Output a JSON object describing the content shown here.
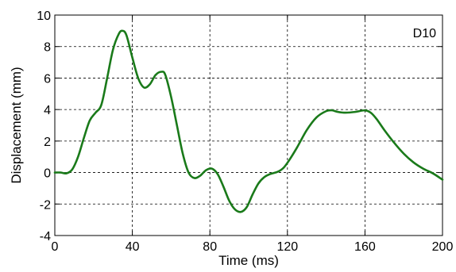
{
  "chart_data": {
    "type": "line",
    "xlabel": "Time (ms)",
    "ylabel": "Displacement (mm)",
    "xlim": [
      0,
      200
    ],
    "ylim": [
      -4,
      10
    ],
    "xticks": [
      0,
      40,
      80,
      120,
      160,
      200
    ],
    "yticks": [
      -4,
      -2,
      0,
      2,
      4,
      6,
      8,
      10
    ],
    "grid": true,
    "annotation": "D10",
    "series": [
      {
        "color": "#1a7a1a",
        "x": [
          0,
          3,
          6,
          9,
          12,
          15,
          18,
          21,
          24,
          27,
          30,
          33,
          35,
          37,
          40,
          43,
          46,
          49,
          52,
          55,
          57,
          60,
          63,
          66,
          69,
          72,
          75,
          78,
          81,
          84,
          87,
          90,
          93,
          96,
          99,
          102,
          105,
          108,
          111,
          115,
          118,
          121,
          125,
          130,
          135,
          140,
          143,
          146,
          150,
          155,
          160,
          163,
          166,
          170,
          175,
          180,
          185,
          190,
          195,
          200
        ],
        "y": [
          0.0,
          0.0,
          -0.05,
          0.2,
          1.0,
          2.2,
          3.3,
          3.8,
          4.3,
          6.0,
          7.8,
          8.8,
          9.0,
          8.7,
          7.3,
          6.0,
          5.4,
          5.6,
          6.2,
          6.4,
          6.2,
          4.8,
          3.0,
          1.2,
          0.0,
          -0.35,
          -0.2,
          0.15,
          0.25,
          -0.1,
          -0.9,
          -1.8,
          -2.35,
          -2.5,
          -2.2,
          -1.4,
          -0.7,
          -0.3,
          -0.1,
          0.05,
          0.3,
          0.8,
          1.6,
          2.7,
          3.5,
          3.9,
          3.95,
          3.85,
          3.8,
          3.85,
          3.95,
          3.8,
          3.4,
          2.7,
          1.9,
          1.2,
          0.65,
          0.25,
          -0.05,
          -0.45
        ]
      }
    ]
  }
}
